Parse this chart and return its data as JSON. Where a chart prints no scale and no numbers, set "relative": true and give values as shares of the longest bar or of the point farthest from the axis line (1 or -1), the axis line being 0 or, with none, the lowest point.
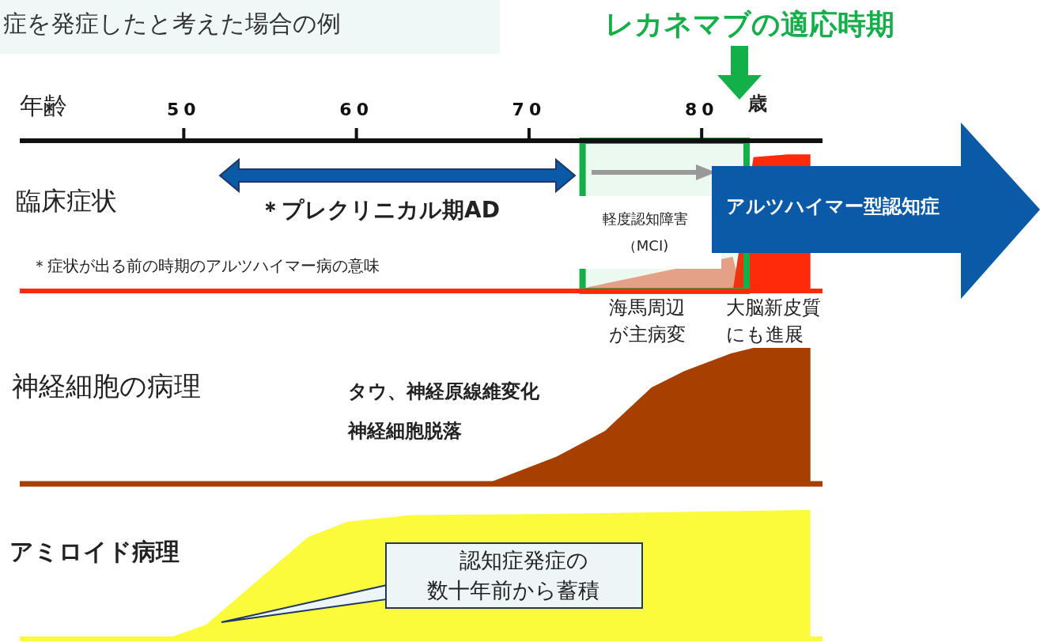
{
  "chart_data": [
    {
      "type": "area",
      "relative": true,
      "title": "レカネマブの適応時期",
      "subtitle": "症を発症したと考えた場合の例",
      "xlabel": "年齢",
      "ylabel": "臨床症状",
      "xlim": [
        40.5,
        87
      ],
      "xticks": [
        50,
        60,
        70,
        80
      ],
      "tick_labels": "x",
      "annotations": [
        "歳",
        "＊プレクリニカル期AD",
        "＊症状が出る前の時期のアルツハイマー病の意味",
        "軽度認知障害（MCI)",
        "アルツハイマー型認知症",
        "海馬周辺が主病変",
        "大脳新皮質にも進展"
      ],
      "series": [
        {
          "color": "#f7a08c",
          "x": [
            72.8,
            73.5,
            76,
            78,
            80,
            81.8,
            82.3
          ],
          "values": [
            0,
            0.03,
            null,
            null,
            null,
            0.25,
            0
          ]
        },
        {
          "color": "#ff2a0a",
          "x": [
            81.8,
            82.3,
            83,
            85,
            86.3,
            86.3
          ],
          "values": [
            0,
            null,
            0.98,
            1,
            1,
            0
          ]
        }
      ],
      "bands": [
        {
          "axis": "x",
          "from": 73.1,
          "to": 82.6,
          "color": "#13b04a"
        }
      ]
    },
    {
      "type": "area",
      "relative": true,
      "ylabel": "神経細胞の病理",
      "xlim": [
        40.5,
        87
      ],
      "tick_labels": false,
      "annotations": [
        "タウ、神経原線維変化",
        "神経細胞脱落"
      ],
      "series": [
        {
          "color": "#a63f00",
          "x": [
            67.5,
            71.6,
            74.4,
            77.1,
            79,
            81.7,
            83,
            86.3,
            86.3
          ],
          "values": [
            0,
            0.2,
            0.39,
            0.71,
            0.83,
            0.96,
            1,
            1,
            0
          ]
        }
      ]
    },
    {
      "type": "area",
      "relative": true,
      "ylabel": "アミロイド病理",
      "xlim": [
        40.5,
        87
      ],
      "tick_labels": false,
      "annotations": [
        "認知症発症の数十年前から蓄積"
      ],
      "series": [
        {
          "color": "#fbfb3c",
          "x": [
            49,
            51.3,
            57.2,
            59.5,
            63.1,
            71.3,
            86.3,
            86.3
          ],
          "values": [
            0,
            0.11,
            0.79,
            0.91,
            0.96,
            0.97,
            1,
            0
          ]
        }
      ]
    }
  ]
}
